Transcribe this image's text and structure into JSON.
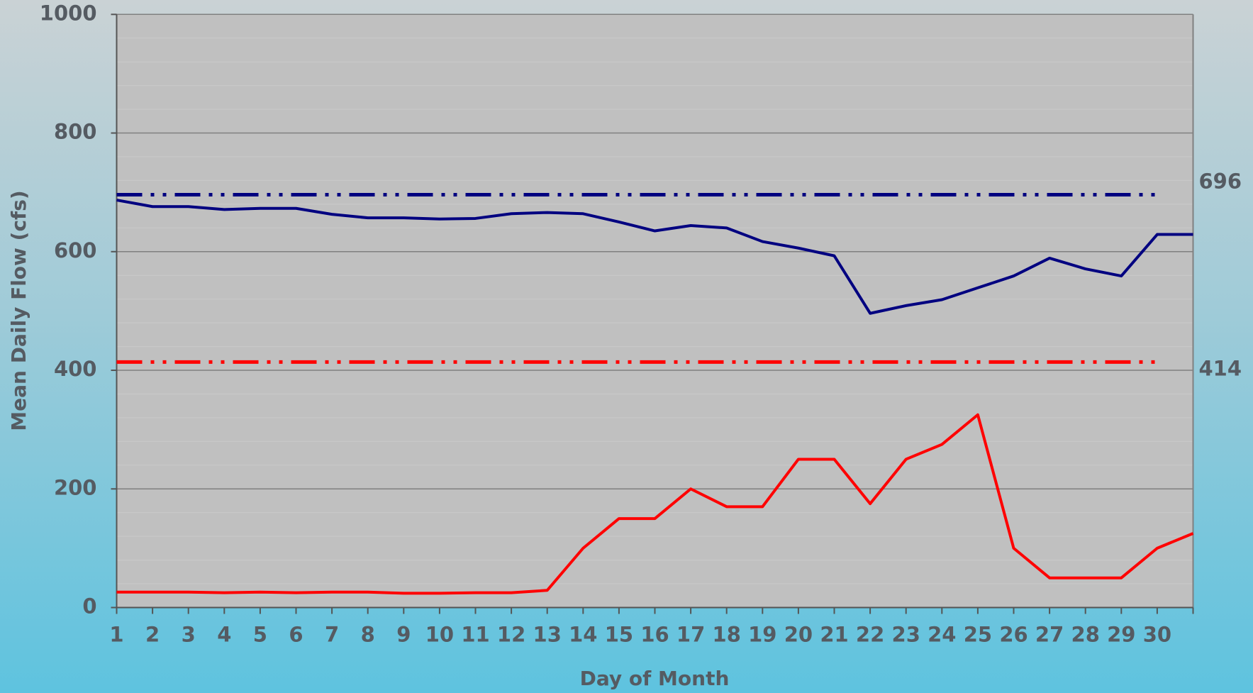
{
  "chart_data": {
    "type": "line",
    "y_label": "Mean Daily Flow (cfs)",
    "x_label": "Day of Month",
    "categories": [
      "1",
      "2",
      "3",
      "4",
      "5",
      "6",
      "7",
      "8",
      "9",
      "10",
      "11",
      "12",
      "13",
      "14",
      "15",
      "16",
      "17",
      "18",
      "19",
      "20",
      "21",
      "22",
      "23",
      "24",
      "25",
      "26",
      "27",
      "28",
      "29",
      "30",
      null
    ],
    "series": [
      {
        "color": "#000080",
        "values": [
          687,
          676,
          676,
          671,
          673,
          673,
          663,
          657,
          657,
          655,
          656,
          664,
          666,
          664,
          650,
          635,
          644,
          640,
          617,
          606,
          593,
          496,
          509,
          519,
          539,
          559,
          589,
          571,
          559,
          629,
          629
        ]
      },
      {
        "color": "#ff0000",
        "values": [
          26,
          26,
          26,
          25,
          26,
          25,
          26,
          26,
          24,
          24,
          25,
          25,
          29,
          100,
          150,
          150,
          200,
          170,
          170,
          250,
          250,
          175,
          250,
          275,
          325,
          100,
          50,
          50,
          50,
          100,
          125
        ]
      }
    ],
    "reference_lines": [
      {
        "value": 696,
        "color": "#000080"
      },
      {
        "value": 414,
        "color": "#ff0000"
      }
    ],
    "ylim": [
      0,
      1000
    ],
    "yticks": [
      0,
      200,
      400,
      600,
      800,
      1000
    ],
    "minor_yticks": [
      40,
      80,
      120,
      160,
      240,
      280,
      320,
      360,
      440,
      480,
      520,
      560,
      640,
      680,
      720,
      760,
      840,
      880,
      920,
      960
    ],
    "grid": true
  }
}
